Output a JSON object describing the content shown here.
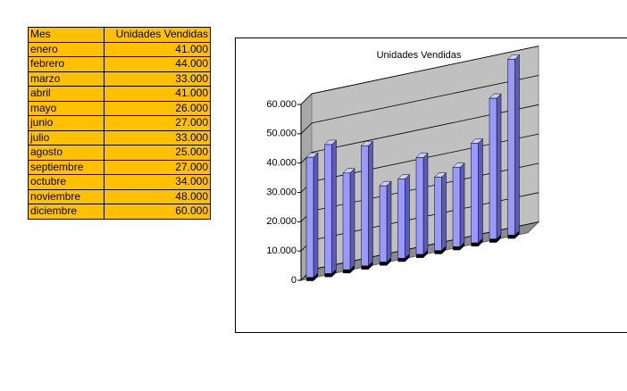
{
  "table": {
    "header": [
      "Mes",
      "Unidades Vendidas"
    ],
    "rows": [
      [
        "enero",
        "41.000"
      ],
      [
        "febrero",
        "44.000"
      ],
      [
        "marzo",
        "33.000"
      ],
      [
        "abril",
        "41.000"
      ],
      [
        "mayo",
        "26.000"
      ],
      [
        "junio",
        "27.000"
      ],
      [
        "julio",
        "33.000"
      ],
      [
        "agosto",
        "25.000"
      ],
      [
        "septiembre",
        "27.000"
      ],
      [
        "octubre",
        "34.000"
      ],
      [
        "noviembre",
        "48.000"
      ],
      [
        "diciembre",
        "60.000"
      ]
    ]
  },
  "chart_data": {
    "type": "bar3d",
    "title": "Unidades Vendidas",
    "values": [
      41000,
      44000,
      33000,
      41000,
      26000,
      27000,
      33000,
      25000,
      27000,
      34000,
      48000,
      60000
    ],
    "color": "#9999ff",
    "ylim": [
      0,
      60000
    ],
    "yticks": [
      0,
      {
        "value": 10000,
        "label": "10.000"
      },
      {
        "value": 20000,
        "label": "20.000"
      },
      {
        "value": 30000,
        "label": "30.000"
      },
      {
        "value": 40000,
        "label": "40.000"
      },
      {
        "value": 50000,
        "label": "50.000"
      },
      {
        "value": 60000,
        "label": "60.000"
      }
    ],
    "grid": true
  }
}
